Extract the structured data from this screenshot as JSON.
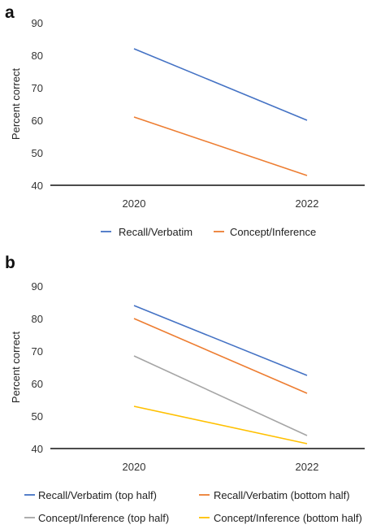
{
  "chart_data": [
    {
      "type": "line",
      "panel_label": "a",
      "x": [
        "2020",
        "2022"
      ],
      "series": [
        {
          "name": "Recall/Verbatim",
          "values": [
            82,
            60
          ],
          "color": "#4472c4"
        },
        {
          "name": "Concept/Inference",
          "values": [
            61,
            43
          ],
          "color": "#ed7d31"
        }
      ],
      "ylabel": "Percent correct",
      "ylim": [
        40,
        90
      ],
      "yticks": [
        40,
        50,
        60,
        70,
        80,
        90
      ],
      "grid": false,
      "legend": "bottom"
    },
    {
      "type": "line",
      "panel_label": "b",
      "x": [
        "2020",
        "2022"
      ],
      "series": [
        {
          "name": "Recall/Verbatim (top half)",
          "values": [
            84,
            62.5
          ],
          "color": "#4472c4"
        },
        {
          "name": "Recall/Verbatim (bottom half)",
          "values": [
            80,
            57
          ],
          "color": "#ed7d31"
        },
        {
          "name": "Concept/Inference (top half)",
          "values": [
            68.5,
            44
          ],
          "color": "#a5a5a5"
        },
        {
          "name": "Concept/Inference (bottom half)",
          "values": [
            53,
            41.5
          ],
          "color": "#ffc000"
        }
      ],
      "ylabel": "Percent correct",
      "ylim": [
        40,
        90
      ],
      "yticks": [
        40,
        50,
        60,
        70,
        80,
        90
      ],
      "grid": false,
      "legend": "bottom"
    }
  ]
}
